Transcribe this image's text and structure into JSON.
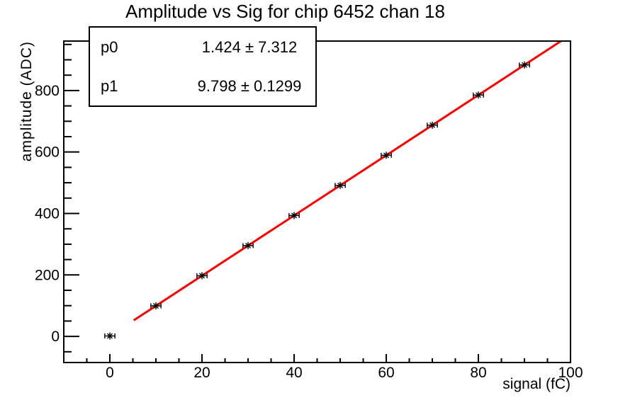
{
  "stats_box": {
    "rows": [
      {
        "name": "p0",
        "value": "1.424 ± 7.312"
      },
      {
        "name": "p1",
        "value": "9.798 ± 0.1299"
      }
    ]
  },
  "chart_data": {
    "type": "scatter",
    "title": "Amplitude vs Sig for chip 6452 chan 18",
    "xlabel": "signal (fC)",
    "ylabel": "amplitude (ADC)",
    "x": [
      0,
      10,
      20,
      30,
      40,
      50,
      60,
      70,
      80,
      90
    ],
    "y": [
      1.4,
      99.4,
      197.4,
      295.4,
      393.3,
      491.3,
      589.3,
      687.3,
      785.3,
      883.2
    ],
    "x_error": 1.1,
    "marker": "asterisk",
    "marker_color": "#000000",
    "fit": {
      "type": "linear",
      "p0": 1.424,
      "p1": 9.798,
      "x_start": 5.2,
      "x_end": 100,
      "color": "#ff0000"
    },
    "xlim": [
      -10,
      100
    ],
    "ylim": [
      -85,
      961
    ],
    "x_major_ticks": [
      0,
      20,
      40,
      60,
      80,
      100
    ],
    "x_minor_step": 5,
    "y_major_ticks": [
      0,
      200,
      400,
      600,
      800
    ],
    "y_minor_step": 50,
    "grid": false,
    "legend": null,
    "frame_color": "#000000",
    "background_color": "#ffffff"
  }
}
